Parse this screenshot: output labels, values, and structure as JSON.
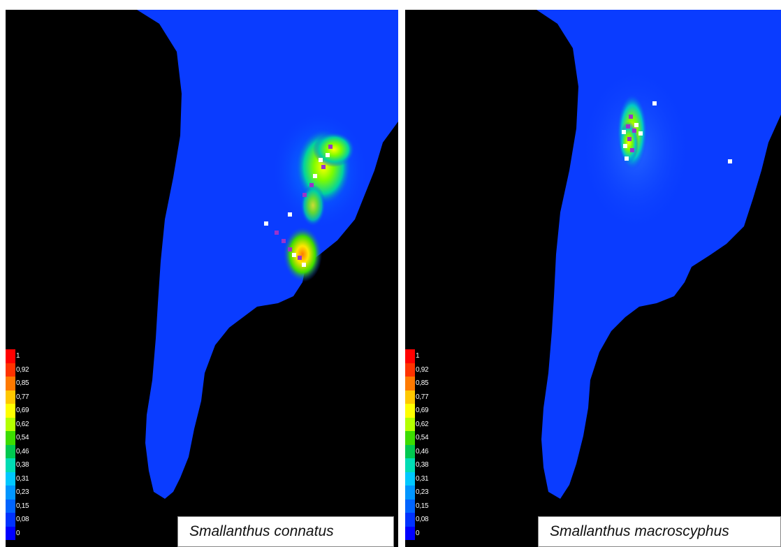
{
  "panels": [
    {
      "species": "Smallanthus connatus",
      "legend": [
        "1",
        "0,92",
        "0,85",
        "0,77",
        "0,69",
        "0,62",
        "0,54",
        "0,46",
        "0,38",
        "0,31",
        "0,23",
        "0,15",
        "0,08",
        "0"
      ]
    },
    {
      "species": "Smallanthus macroscyphus",
      "legend": [
        "1",
        "0,92",
        "0,85",
        "0,77",
        "0,69",
        "0,62",
        "0,54",
        "0,46",
        "0,38",
        "0,31",
        "0,23",
        "0,15",
        "0,08",
        "0"
      ]
    }
  ],
  "colors": {
    "background": "#000000",
    "low_suitability": "#0a3cff",
    "scale": [
      "#ff0000",
      "#ff3300",
      "#ff7a00",
      "#ffc800",
      "#ffff00",
      "#b4ff00",
      "#3cdc00",
      "#00c850",
      "#00dcb4",
      "#00c8ff",
      "#0096ff",
      "#0064ff",
      "#0032ff",
      "#0000ff"
    ],
    "occurrence_white": "#ffffff",
    "occurrence_purple": "#9933cc"
  }
}
